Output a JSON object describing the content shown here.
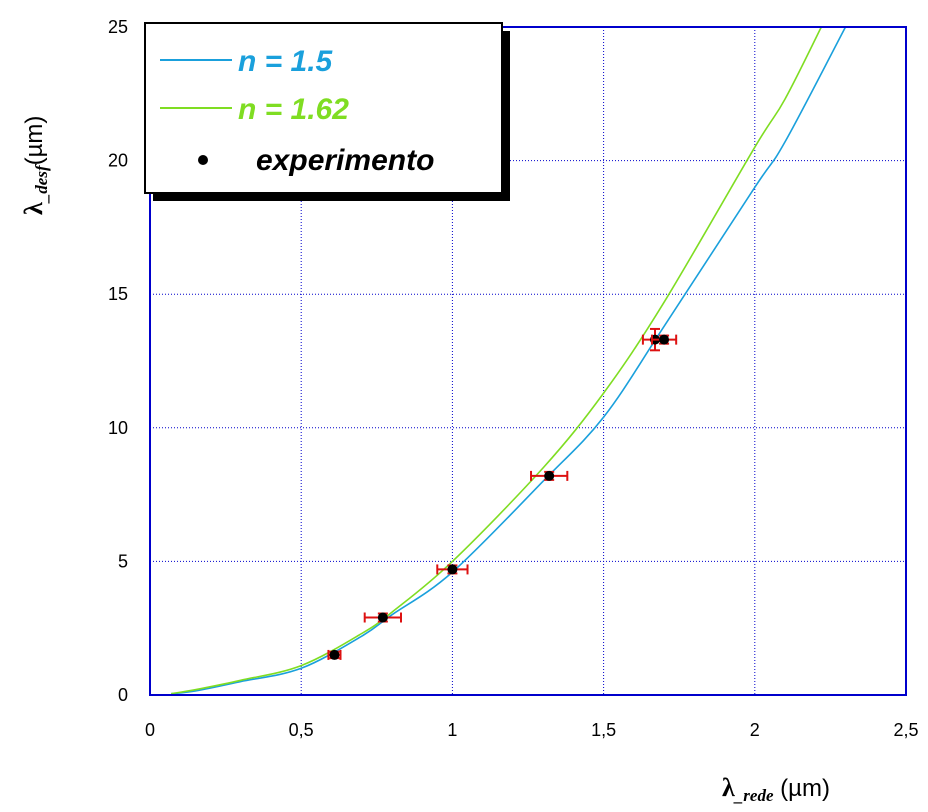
{
  "chart_data": {
    "type": "scatter",
    "xlim": [
      0,
      2.5
    ],
    "ylim": [
      0,
      25
    ],
    "x_ticks": [
      "0",
      "0,5",
      "1",
      "1,5",
      "2",
      "2,5"
    ],
    "x_tick_values": [
      0,
      0.5,
      1,
      1.5,
      2,
      2.5
    ],
    "y_ticks": [
      "0",
      "5",
      "10",
      "15",
      "20",
      "25"
    ],
    "y_tick_values": [
      0,
      5,
      10,
      15,
      20,
      25
    ],
    "xlabel": {
      "symbol": "λ",
      "sub": "_rede",
      "unit": " (µm)"
    },
    "ylabel": {
      "symbol": "λ",
      "sub": "_desf",
      "unit": "(µm)"
    },
    "grid": true,
    "legend_position": "top-left",
    "series": [
      {
        "name": "n = 1.5",
        "kind": "line",
        "color": "#1aa0dc",
        "x": [
          0.07,
          0.15,
          0.3,
          0.5,
          0.7,
          0.8,
          1.0,
          1.3,
          1.5,
          1.7,
          2.0,
          2.1,
          2.3
        ],
        "y": [
          0.05,
          0.15,
          0.5,
          1.0,
          2.2,
          3.0,
          4.6,
          8.0,
          10.4,
          13.8,
          19.0,
          20.7,
          25.0
        ]
      },
      {
        "name": "n = 1.62",
        "kind": "line",
        "color": "#7fdd22",
        "x": [
          0.07,
          0.15,
          0.3,
          0.5,
          0.7,
          0.8,
          1.0,
          1.3,
          1.5,
          1.7,
          2.0,
          2.1,
          2.22
        ],
        "y": [
          0.05,
          0.2,
          0.55,
          1.1,
          2.3,
          3.1,
          5.0,
          8.5,
          11.3,
          14.7,
          20.5,
          22.3,
          25.0
        ]
      },
      {
        "name": "experimento",
        "kind": "points",
        "color": "#000000",
        "error_color": "#dd1111",
        "points": [
          {
            "x": 0.61,
            "y": 1.5,
            "xerr": 0.02,
            "yerr": 0.12
          },
          {
            "x": 0.77,
            "y": 2.9,
            "xerr": 0.06,
            "yerr": 0.15
          },
          {
            "x": 1.0,
            "y": 4.7,
            "xerr": 0.05,
            "yerr": 0.15
          },
          {
            "x": 1.32,
            "y": 8.2,
            "xerr": 0.06,
            "yerr": 0.15
          },
          {
            "x": 1.67,
            "y": 13.3,
            "xerr": 0.04,
            "yerr": 0.4
          },
          {
            "x": 1.7,
            "y": 13.3,
            "xerr": 0.04,
            "yerr": 0.15
          }
        ]
      }
    ],
    "legend": [
      {
        "label": "n = 1.5",
        "color": "#1aa0dc",
        "marker": "line"
      },
      {
        "label": "n = 1.62",
        "color": "#7fdd22",
        "marker": "line"
      },
      {
        "label": "experimento",
        "color": "#000000",
        "marker": "dot"
      }
    ],
    "frame_color": "#0000cc",
    "grid_color": "#0000cc"
  }
}
